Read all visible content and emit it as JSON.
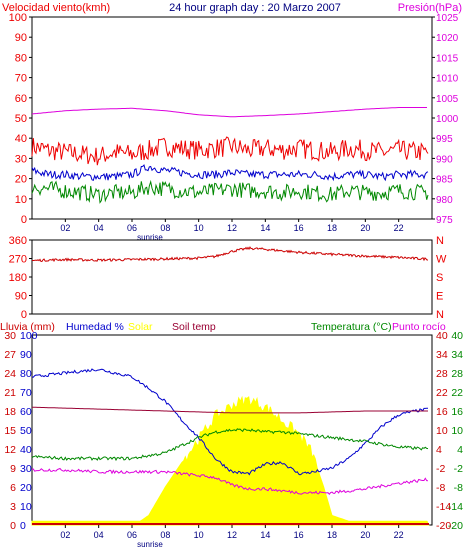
{
  "chart_data": [
    {
      "type": "line",
      "title": "24 hour graph day : 20 Marzo 2007",
      "left_label": "Velocidad viento(kmh)",
      "right_label": "Presión(hPa)",
      "x_ticks": [
        "02",
        "04",
        "06",
        "08",
        "10",
        "12",
        "14",
        "16",
        "18",
        "20",
        "22"
      ],
      "x_annotation": "sunrise",
      "x_range_hours": [
        0,
        24
      ],
      "left_axis": {
        "range": [
          0,
          100
        ],
        "ticks": [
          0,
          10,
          20,
          30,
          40,
          50,
          60,
          70,
          80,
          90,
          100
        ]
      },
      "right_axis": {
        "range": [
          975,
          1025
        ],
        "ticks": [
          975,
          980,
          985,
          990,
          995,
          1000,
          1005,
          1010,
          1015,
          1020,
          1025
        ]
      },
      "grid": false,
      "series": [
        {
          "key": "pressure",
          "axis": "right",
          "color": "#dd00dd",
          "x": [
            0,
            2,
            4,
            6,
            8,
            10,
            12,
            14,
            16,
            18,
            20,
            22,
            23.5
          ],
          "y": [
            1001,
            1001.8,
            1002.2,
            1002.4,
            1001.8,
            1000.8,
            1000.3,
            1000.6,
            1001,
            1001.6,
            1002.2,
            1002.6,
            1002.6
          ]
        },
        {
          "key": "gust",
          "axis": "left",
          "color": "#ee0000",
          "x": [
            0,
            1,
            2,
            3,
            4,
            5,
            6,
            7,
            8,
            9,
            10,
            11,
            12,
            13,
            14,
            15,
            16,
            17,
            18,
            19,
            20,
            21,
            22,
            23.5
          ],
          "y": [
            36,
            34,
            33,
            32,
            31,
            33,
            32,
            34,
            36,
            35,
            34,
            35,
            36,
            34,
            35,
            34,
            35,
            34,
            33,
            35,
            34,
            33,
            34,
            33
          ],
          "noise": 5
        },
        {
          "key": "average",
          "axis": "left",
          "color": "#0000cc",
          "x": [
            0,
            1,
            2,
            3,
            4,
            5,
            6,
            7,
            8,
            9,
            10,
            11,
            12,
            13,
            14,
            15,
            16,
            17,
            18,
            19,
            20,
            21,
            22,
            23.5
          ],
          "y": [
            24,
            22,
            22,
            21,
            21,
            21,
            22,
            26,
            24,
            23,
            22,
            22,
            23,
            22,
            22,
            22,
            22,
            22,
            21,
            22,
            22,
            21,
            22,
            22
          ],
          "noise": 2
        },
        {
          "key": "low",
          "axis": "left",
          "color": "#008800",
          "x": [
            0,
            1,
            2,
            3,
            4,
            5,
            6,
            7,
            8,
            9,
            10,
            11,
            12,
            13,
            14,
            15,
            16,
            17,
            18,
            19,
            20,
            21,
            22,
            23.5
          ],
          "y": [
            16,
            15,
            14,
            13,
            12,
            13,
            13,
            16,
            15,
            14,
            13,
            14,
            15,
            14,
            14,
            13,
            14,
            13,
            12,
            14,
            13,
            13,
            14,
            13
          ],
          "noise": 4
        }
      ]
    },
    {
      "type": "line",
      "right_labels": [
        "N",
        "W",
        "S",
        "E",
        "N"
      ],
      "x_range_hours": [
        0,
        24
      ],
      "left_axis": {
        "range": [
          0,
          360
        ],
        "ticks": [
          0,
          90,
          180,
          270,
          360
        ]
      },
      "grid": false,
      "series": [
        {
          "key": "wind-direction",
          "axis": "left",
          "color": "#cc0000",
          "x": [
            0,
            2,
            4,
            6,
            8,
            10,
            11,
            12,
            13,
            14,
            16,
            18,
            20,
            22,
            23.5
          ],
          "y": [
            260,
            265,
            262,
            265,
            268,
            272,
            280,
            305,
            320,
            315,
            300,
            290,
            282,
            275,
            268
          ],
          "noise": 6
        }
      ]
    },
    {
      "type": "area",
      "legend": [
        {
          "label": "Lluvia (mm)",
          "color": "#cc0000"
        },
        {
          "label": "Humedad %",
          "color": "#0000cc"
        },
        {
          "label": "Solar",
          "color": "#ffff00"
        },
        {
          "label": "Soil temp",
          "color": "#990033"
        },
        {
          "label": "Temperatura (°C)",
          "color": "#008800"
        },
        {
          "label": "Punto rocío",
          "color": "#dd00dd"
        }
      ],
      "x_ticks": [
        "02",
        "04",
        "06",
        "08",
        "10",
        "12",
        "14",
        "16",
        "18",
        "20",
        "22"
      ],
      "x_annotation": "sunrise",
      "x_range_hours": [
        0,
        24
      ],
      "axes": {
        "rain": {
          "range": [
            0,
            30
          ],
          "ticks": [
            0,
            3,
            6,
            9,
            12,
            15,
            18,
            21,
            24,
            27,
            30
          ]
        },
        "humidity": {
          "range": [
            0,
            100
          ],
          "ticks": [
            0,
            10,
            20,
            30,
            40,
            50,
            60,
            70,
            80,
            90,
            100
          ]
        },
        "temp_right1": {
          "range": [
            -20,
            40
          ],
          "ticks": [
            -20,
            -14,
            -8,
            -2,
            4,
            10,
            16,
            22,
            28,
            34,
            40
          ]
        },
        "temp_right2": {
          "range": [
            -20,
            40
          ],
          "ticks": [
            -20,
            -14,
            -8,
            -2,
            4,
            10,
            16,
            22,
            28,
            34,
            40
          ]
        }
      },
      "series": [
        {
          "key": "solar",
          "axis": "humidity",
          "color": "#ffff00",
          "fill": true,
          "x": [
            0,
            6.5,
            7,
            8,
            9,
            10,
            11,
            12,
            13,
            14,
            15,
            16,
            16.8,
            17.5,
            18,
            19,
            24
          ],
          "y": [
            2,
            2,
            5,
            20,
            33,
            45,
            57,
            63,
            66,
            62,
            55,
            48,
            38,
            20,
            5,
            2,
            2
          ]
        },
        {
          "key": "humidity",
          "axis": "humidity",
          "color": "#0000cc",
          "x": [
            0,
            2,
            4,
            5,
            6,
            7,
            8,
            9,
            10,
            11,
            12,
            13,
            14,
            15,
            16,
            17,
            18,
            19,
            20,
            21,
            22,
            23,
            23.8
          ],
          "y": [
            78,
            80,
            82,
            80,
            78,
            72,
            65,
            55,
            46,
            35,
            28,
            27,
            32,
            33,
            27,
            28,
            30,
            35,
            43,
            52,
            58,
            60,
            61
          ]
        },
        {
          "key": "soil-temp",
          "axis": "humidity",
          "color": "#990033",
          "x": [
            0,
            4,
            8,
            12,
            16,
            20,
            23.8
          ],
          "y": [
            62,
            61,
            60,
            59,
            59,
            60,
            60
          ]
        },
        {
          "key": "temperature",
          "axis": "humidity",
          "color": "#008800",
          "x": [
            0,
            2,
            4,
            6,
            8,
            9,
            10,
            11,
            12,
            13,
            14,
            15,
            16,
            17,
            18,
            20,
            22,
            23.8
          ],
          "y": [
            36,
            35,
            35,
            35,
            38,
            42,
            46,
            49,
            50,
            50,
            49,
            49,
            48,
            47,
            46,
            44,
            41,
            40
          ]
        },
        {
          "key": "dew-point",
          "axis": "humidity",
          "color": "#dd00dd",
          "x": [
            0,
            2,
            4,
            6,
            8,
            9,
            10,
            11,
            12,
            13,
            14,
            15,
            16,
            17,
            18,
            20,
            22,
            23.8
          ],
          "y": [
            29,
            29,
            28,
            28,
            28,
            27,
            26,
            25,
            21,
            19,
            19,
            18,
            17,
            17,
            17,
            19,
            22,
            24
          ]
        },
        {
          "key": "rain",
          "axis": "humidity",
          "color": "#cc0000",
          "x": [
            0,
            23.8
          ],
          "y": [
            0,
            0
          ]
        }
      ]
    }
  ],
  "colors": {
    "frame": "#000000",
    "red": "#ee0000",
    "blue": "#0000cc",
    "green": "#008800",
    "magenta": "#dd00dd",
    "maroon": "#990033",
    "yellow": "#ffff00",
    "navy": "#000080"
  }
}
